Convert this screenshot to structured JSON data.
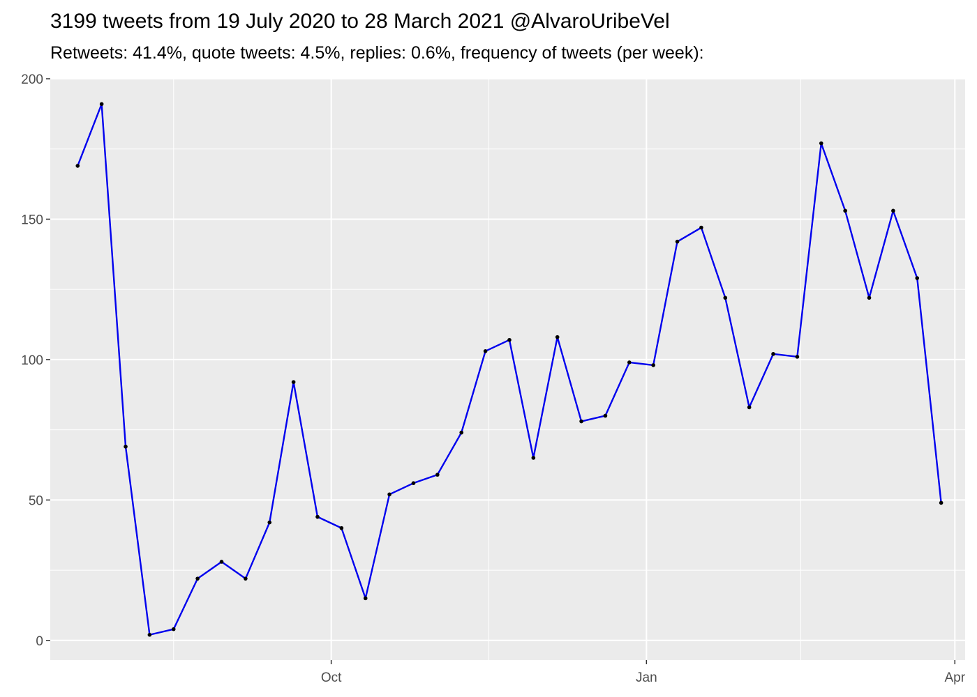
{
  "chart_data": {
    "type": "line",
    "title": "3199 tweets from 19 July 2020 to 28 March 2021 @AlvaroUribeVel",
    "subtitle": "Retweets: 41.4%, quote tweets: 4.5%, replies: 0.6%, frequency of tweets (per week):",
    "xlabel": "",
    "ylabel": "",
    "x_ticks": [
      {
        "date": "2020-10-01",
        "label": "Oct"
      },
      {
        "date": "2021-01-01",
        "label": "Jan"
      },
      {
        "date": "2021-04-01",
        "label": "Apr"
      }
    ],
    "y_ticks": [
      0,
      50,
      100,
      150,
      200
    ],
    "ylim": [
      -7,
      200
    ],
    "xlim": [
      "2020-07-11",
      "2021-04-04"
    ],
    "grid": true,
    "legend": "none",
    "line_color": "#0000ee",
    "point_color": "#000000",
    "panel_color": "#ebebeb",
    "series": [
      {
        "points": [
          {
            "x": "2020-07-19",
            "y": 169
          },
          {
            "x": "2020-07-26",
            "y": 191
          },
          {
            "x": "2020-08-02",
            "y": 69
          },
          {
            "x": "2020-08-09",
            "y": 2
          },
          {
            "x": "2020-08-16",
            "y": 4
          },
          {
            "x": "2020-08-23",
            "y": 22
          },
          {
            "x": "2020-08-30",
            "y": 28
          },
          {
            "x": "2020-09-06",
            "y": 22
          },
          {
            "x": "2020-09-13",
            "y": 42
          },
          {
            "x": "2020-09-20",
            "y": 92
          },
          {
            "x": "2020-09-27",
            "y": 44
          },
          {
            "x": "2020-10-04",
            "y": 40
          },
          {
            "x": "2020-10-11",
            "y": 15
          },
          {
            "x": "2020-10-18",
            "y": 52
          },
          {
            "x": "2020-10-25",
            "y": 56
          },
          {
            "x": "2020-11-01",
            "y": 59
          },
          {
            "x": "2020-11-08",
            "y": 74
          },
          {
            "x": "2020-11-15",
            "y": 103
          },
          {
            "x": "2020-11-22",
            "y": 107
          },
          {
            "x": "2020-11-29",
            "y": 65
          },
          {
            "x": "2020-12-06",
            "y": 108
          },
          {
            "x": "2020-12-13",
            "y": 78
          },
          {
            "x": "2020-12-20",
            "y": 80
          },
          {
            "x": "2020-12-27",
            "y": 99
          },
          {
            "x": "2021-01-03",
            "y": 98
          },
          {
            "x": "2021-01-10",
            "y": 142
          },
          {
            "x": "2021-01-17",
            "y": 147
          },
          {
            "x": "2021-01-24",
            "y": 122
          },
          {
            "x": "2021-01-31",
            "y": 83
          },
          {
            "x": "2021-02-07",
            "y": 102
          },
          {
            "x": "2021-02-14",
            "y": 101
          },
          {
            "x": "2021-02-21",
            "y": 177
          },
          {
            "x": "2021-02-28",
            "y": 153
          },
          {
            "x": "2021-03-07",
            "y": 122
          },
          {
            "x": "2021-03-14",
            "y": 153
          },
          {
            "x": "2021-03-21",
            "y": 129
          },
          {
            "x": "2021-03-28",
            "y": 49
          }
        ]
      }
    ]
  }
}
